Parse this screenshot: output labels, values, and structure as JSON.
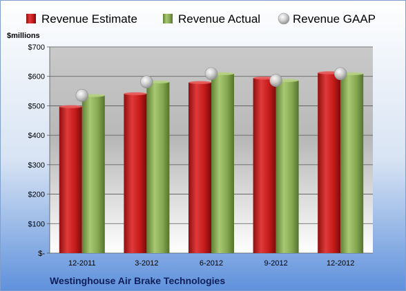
{
  "chart_data": {
    "type": "bar",
    "categories": [
      "12-2011",
      "3-2012",
      "6-2012",
      "9-2012",
      "12-2012"
    ],
    "series": [
      {
        "name": "Revenue Estimate",
        "values": [
          497,
          541,
          579,
          594,
          612
        ],
        "color": "#cc1f1f"
      },
      {
        "name": "Revenue Actual",
        "values": [
          535,
          581,
          609,
          586,
          609
        ],
        "color": "#8fb35a"
      },
      {
        "name": "Revenue GAAP",
        "values": [
          535,
          581,
          609,
          586,
          609
        ],
        "color": "#c8c8c8",
        "marker": "sphere"
      }
    ],
    "ylabel": "$millions",
    "ylim": [
      0,
      700
    ],
    "yticks": [
      0,
      100,
      200,
      300,
      400,
      500,
      600,
      700
    ],
    "ytick_labels": [
      "$-",
      "$100",
      "$200",
      "$300",
      "$400",
      "$500",
      "$600",
      "$700"
    ],
    "grid": true,
    "legend": "top",
    "footer": "Westinghouse Air Brake Technologies"
  }
}
